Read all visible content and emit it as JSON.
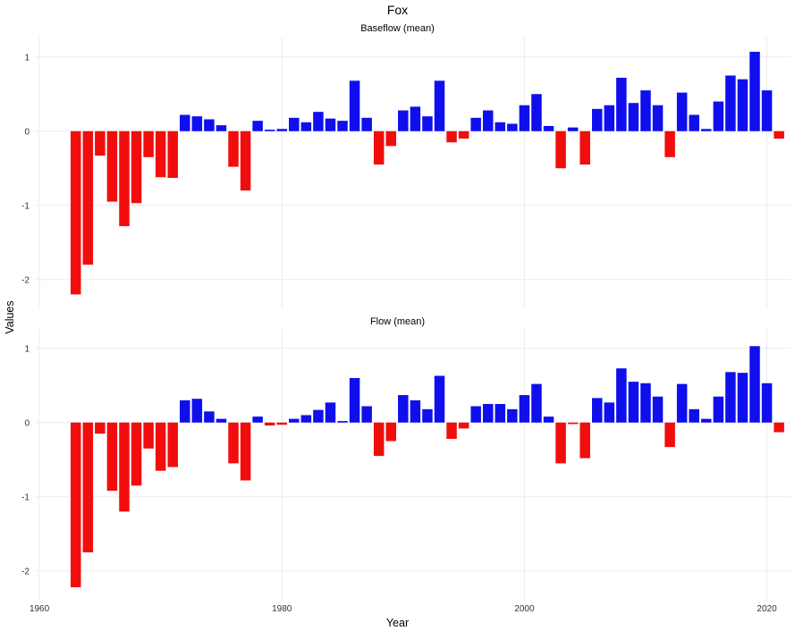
{
  "chart_data": {
    "type": "bar",
    "title": "Fox",
    "xlabel": "Year",
    "ylabel": "Values",
    "legend": "none",
    "grid": true,
    "xlim": [
      1959.7,
      2021.95
    ],
    "ylim": [
      -2.4,
      1.25
    ],
    "x_ticks": [
      1960,
      1980,
      2000,
      2020
    ],
    "y_ticks": [
      1,
      0,
      -1,
      -2
    ],
    "colors": {
      "positive": "#0f0fee",
      "negative": "#f20d0d",
      "gridline": "#ebebeb"
    },
    "years": [
      1963,
      1964,
      1965,
      1966,
      1967,
      1968,
      1969,
      1970,
      1971,
      1972,
      1973,
      1974,
      1975,
      1976,
      1977,
      1978,
      1979,
      1980,
      1981,
      1982,
      1983,
      1984,
      1985,
      1986,
      1987,
      1988,
      1989,
      1990,
      1991,
      1992,
      1993,
      1994,
      1995,
      1996,
      1997,
      1998,
      1999,
      2000,
      2001,
      2002,
      2003,
      2004,
      2005,
      2006,
      2007,
      2008,
      2009,
      2010,
      2011,
      2012,
      2013,
      2014,
      2015,
      2016,
      2017,
      2018,
      2019,
      2020,
      2021
    ],
    "panels": [
      {
        "title": "Baseflow (mean)",
        "values": [
          -2.2,
          -1.8,
          -0.33,
          -0.95,
          -1.28,
          -0.97,
          -0.35,
          -0.62,
          -0.63,
          0.22,
          0.2,
          0.16,
          0.08,
          -0.48,
          -0.8,
          0.14,
          0.02,
          0.03,
          0.18,
          0.12,
          0.26,
          0.17,
          0.14,
          0.68,
          0.18,
          -0.45,
          -0.2,
          0.28,
          0.33,
          0.2,
          0.68,
          -0.15,
          -0.1,
          0.18,
          0.28,
          0.12,
          0.1,
          0.35,
          0.5,
          0.07,
          -0.5,
          0.05,
          -0.45,
          0.3,
          0.35,
          0.72,
          0.38,
          0.55,
          0.35,
          -0.35,
          0.52,
          0.22,
          0.03,
          0.4,
          0.75,
          0.7,
          1.07,
          0.55,
          -0.1
        ]
      },
      {
        "title": "Flow (mean)",
        "values": [
          -2.22,
          -1.75,
          -0.15,
          -0.92,
          -1.2,
          -0.85,
          -0.35,
          -0.65,
          -0.6,
          0.3,
          0.32,
          0.15,
          0.05,
          -0.55,
          -0.78,
          0.08,
          -0.04,
          -0.03,
          0.05,
          0.1,
          0.17,
          0.27,
          0.02,
          0.6,
          0.22,
          -0.45,
          -0.25,
          0.37,
          0.3,
          0.18,
          0.63,
          -0.22,
          -0.08,
          0.22,
          0.25,
          0.25,
          0.18,
          0.37,
          0.52,
          0.08,
          -0.55,
          -0.02,
          -0.48,
          0.33,
          0.27,
          0.73,
          0.55,
          0.53,
          0.35,
          -0.33,
          0.52,
          0.18,
          0.05,
          0.35,
          0.68,
          0.67,
          1.03,
          0.53,
          -0.13
        ]
      }
    ]
  }
}
